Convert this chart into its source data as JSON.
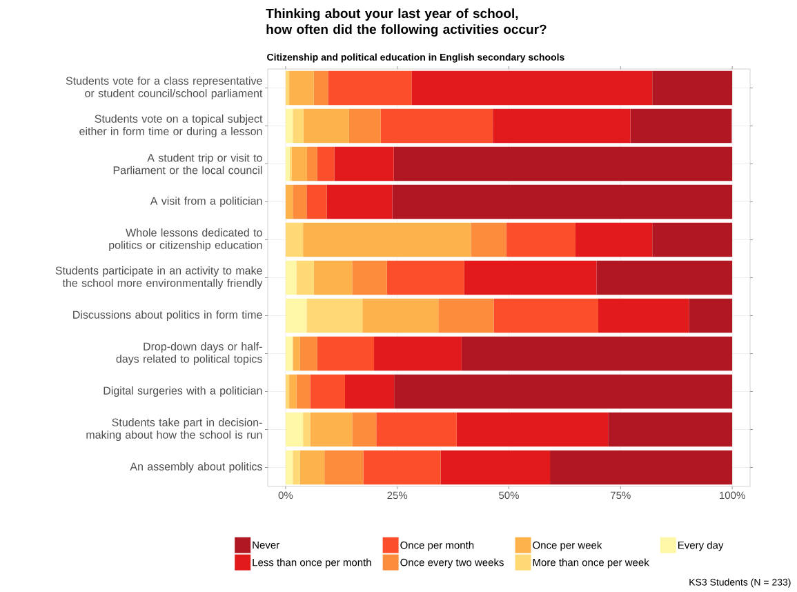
{
  "chart_data": {
    "type": "bar",
    "orientation": "horizontal",
    "stacked": true,
    "title": "Thinking about your last year of school, how often did the following activities occur?",
    "subtitle": "Citizenship and political education in English secondary schools",
    "categories": [
      "Students vote for a class representative or student council/school parliament",
      "Students vote on a topical subject either in form time or during a lesson",
      "A student trip or visit to Parliament or the local council",
      "A visit from a politician",
      "Whole lessons dedicated to politics or citizenship education",
      "Students participate in an activity to make the school more environmentally friendly",
      "Discussions about politics in form time",
      "Drop-down days or half-days related to political topics",
      "Digital surgeries with a politician",
      "Students take part in decision-making about how the school is run",
      "An assembly about politics"
    ],
    "series": [
      {
        "name": "Every day",
        "color": "#fff7a8",
        "values": [
          0,
          1.6,
          0.9,
          0,
          0,
          2.4,
          4.7,
          1.6,
          0,
          3.9,
          1.6
        ]
      },
      {
        "name": "More than once per week",
        "color": "#fed976",
        "values": [
          0.8,
          2.4,
          0.5,
          0,
          3.9,
          3.9,
          12.5,
          0,
          0.8,
          1.6,
          1.6
        ]
      },
      {
        "name": "Once per week",
        "color": "#feb24c",
        "values": [
          5.5,
          10.2,
          3.4,
          1.6,
          37.6,
          8.6,
          17.0,
          1.6,
          1.6,
          9.4,
          5.5
        ]
      },
      {
        "name": "Once every two weeks",
        "color": "#fd8d3c",
        "values": [
          3.2,
          7.1,
          2.3,
          3.1,
          7.9,
          7.8,
          12.4,
          3.9,
          3.1,
          5.4,
          8.7
        ]
      },
      {
        "name": "Once per month",
        "color": "#fc4e2a",
        "values": [
          18.7,
          25.1,
          3.8,
          4.5,
          15.5,
          17.3,
          23.4,
          12.7,
          7.8,
          18.0,
          17.3
        ]
      },
      {
        "name": "Less than once per month",
        "color": "#e31a1c",
        "values": [
          53.9,
          30.8,
          13.3,
          14.7,
          17.2,
          29.6,
          20.3,
          19.6,
          11.0,
          33.9,
          24.5
        ]
      },
      {
        "name": "Never",
        "color": "#b01722",
        "values": [
          17.9,
          22.7,
          75.8,
          76.1,
          17.9,
          30.4,
          9.7,
          60.6,
          75.7,
          27.8,
          40.8
        ]
      }
    ],
    "xlim": [
      -4,
      104
    ],
    "xticks": [
      {
        "value": 0,
        "label": "0%"
      },
      {
        "value": 25,
        "label": "25%"
      },
      {
        "value": 50,
        "label": "50%"
      },
      {
        "value": 75,
        "label": "75%"
      },
      {
        "value": 100,
        "label": "100%"
      }
    ],
    "grid": true,
    "legend": "bottom",
    "annotations": [
      "KS3 Students (N = 233)"
    ]
  }
}
